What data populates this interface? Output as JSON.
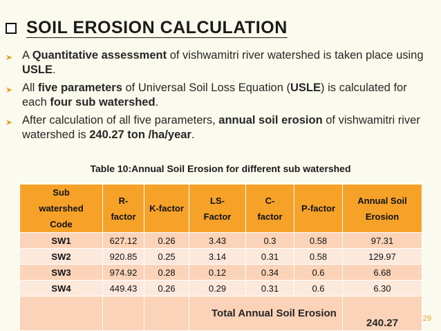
{
  "title": "SOIL EROSION CALCULATION",
  "bullets": [
    {
      "parts": [
        "A ",
        "Quantitative assessment",
        " of vishwamitri river watershed is taken place using ",
        "USLE",
        "."
      ]
    },
    {
      "parts": [
        "All ",
        "five parameters",
        " of Universal Soil Loss Equation (",
        "USLE",
        ") is calculated for each ",
        "four sub watershed",
        "."
      ]
    },
    {
      "parts": [
        "After calculation of all five parameters, ",
        "annual soil erosion",
        " of vishwamitri river watershed is ",
        "240.27 ton /ha/year",
        "."
      ]
    }
  ],
  "table": {
    "caption": "Table 10:Annual Soil Erosion for different sub watershed",
    "headers": [
      "Sub watershed Code",
      "R-factor",
      "K-factor",
      "LS-Factor",
      "C-factor",
      "P-factor",
      "Annual Soil Erosion"
    ],
    "rows": [
      [
        "SW1",
        "627.12",
        "0.26",
        "3.43",
        "0.3",
        "0.58",
        "97.31"
      ],
      [
        "SW2",
        "920.85",
        "0.25",
        "3.14",
        "0.31",
        "0.58",
        "129.97"
      ],
      [
        "SW3",
        "974.92",
        "0.28",
        "0.12",
        "0.34",
        "0.6",
        "6.68"
      ],
      [
        "SW4",
        "449.43",
        "0.26",
        "0.29",
        "0.31",
        "0.6",
        "6.30"
      ]
    ],
    "total_label": "Total Annual Soil Erosion",
    "total_value": "240.27"
  },
  "page_number": "29",
  "colors": {
    "header": "#f6a229",
    "row": "#fbd3b8",
    "row_alt": "#fde8dc",
    "bullet_arrow": "#e6a020"
  }
}
